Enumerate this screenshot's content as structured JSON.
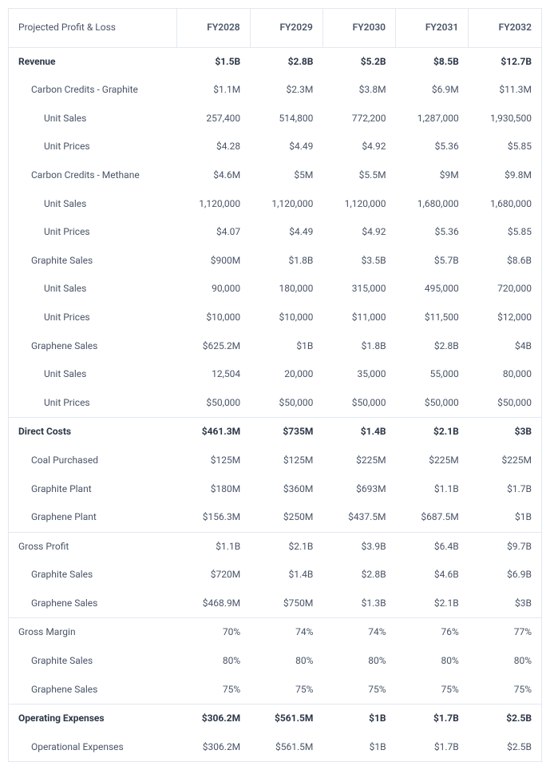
{
  "header": {
    "title": "Projected Profit & Loss",
    "cols": [
      "FY2028",
      "FY2029",
      "FY2030",
      "FY2031",
      "FY2032"
    ]
  },
  "rows": [
    {
      "type": "section",
      "topborder": true,
      "indent": 0,
      "label": "Revenue",
      "vals": [
        "$1.5B",
        "$2.8B",
        "$5.2B",
        "$8.5B",
        "$12.7B"
      ]
    },
    {
      "type": "plain",
      "indent": 1,
      "label": "Carbon Credits - Graphite",
      "vals": [
        "$1.1M",
        "$2.3M",
        "$3.8M",
        "$6.9M",
        "$11.3M"
      ]
    },
    {
      "type": "plain",
      "indent": 2,
      "label": "Unit Sales",
      "vals": [
        "257,400",
        "514,800",
        "772,200",
        "1,287,000",
        "1,930,500"
      ]
    },
    {
      "type": "plain",
      "indent": 2,
      "label": "Unit Prices",
      "vals": [
        "$4.28",
        "$4.49",
        "$4.92",
        "$5.36",
        "$5.85"
      ]
    },
    {
      "type": "plain",
      "indent": 1,
      "label": "Carbon Credits - Methane",
      "vals": [
        "$4.6M",
        "$5M",
        "$5.5M",
        "$9M",
        "$9.8M"
      ]
    },
    {
      "type": "plain",
      "indent": 2,
      "label": "Unit Sales",
      "vals": [
        "1,120,000",
        "1,120,000",
        "1,120,000",
        "1,680,000",
        "1,680,000"
      ]
    },
    {
      "type": "plain",
      "indent": 2,
      "label": "Unit Prices",
      "vals": [
        "$4.07",
        "$4.49",
        "$4.92",
        "$5.36",
        "$5.85"
      ]
    },
    {
      "type": "plain",
      "indent": 1,
      "label": "Graphite Sales",
      "vals": [
        "$900M",
        "$1.8B",
        "$3.5B",
        "$5.7B",
        "$8.6B"
      ]
    },
    {
      "type": "plain",
      "indent": 2,
      "label": "Unit Sales",
      "vals": [
        "90,000",
        "180,000",
        "315,000",
        "495,000",
        "720,000"
      ]
    },
    {
      "type": "plain",
      "indent": 2,
      "label": "Unit Prices",
      "vals": [
        "$10,000",
        "$10,000",
        "$11,000",
        "$11,500",
        "$12,000"
      ]
    },
    {
      "type": "plain",
      "indent": 1,
      "label": "Graphene Sales",
      "vals": [
        "$625.2M",
        "$1B",
        "$1.8B",
        "$2.8B",
        "$4B"
      ]
    },
    {
      "type": "plain",
      "indent": 2,
      "label": "Unit Sales",
      "vals": [
        "12,504",
        "20,000",
        "35,000",
        "55,000",
        "80,000"
      ]
    },
    {
      "type": "plain",
      "indent": 2,
      "label": "Unit Prices",
      "vals": [
        "$50,000",
        "$50,000",
        "$50,000",
        "$50,000",
        "$50,000"
      ]
    },
    {
      "type": "section",
      "topborder": true,
      "indent": 0,
      "label": "Direct Costs",
      "vals": [
        "$461.3M",
        "$735M",
        "$1.4B",
        "$2.1B",
        "$3B"
      ]
    },
    {
      "type": "plain",
      "indent": 1,
      "label": "Coal Purchased",
      "vals": [
        "$125M",
        "$125M",
        "$225M",
        "$225M",
        "$225M"
      ]
    },
    {
      "type": "plain",
      "indent": 1,
      "label": "Graphite Plant",
      "vals": [
        "$180M",
        "$360M",
        "$693M",
        "$1.1B",
        "$1.7B"
      ]
    },
    {
      "type": "plain",
      "indent": 1,
      "label": "Graphene Plant",
      "vals": [
        "$156.3M",
        "$250M",
        "$437.5M",
        "$687.5M",
        "$1B"
      ]
    },
    {
      "type": "plain",
      "topborder": true,
      "indent": 0,
      "label": "Gross Profit",
      "vals": [
        "$1.1B",
        "$2.1B",
        "$3.9B",
        "$6.4B",
        "$9.7B"
      ]
    },
    {
      "type": "plain",
      "indent": 1,
      "label": "Graphite Sales",
      "vals": [
        "$720M",
        "$1.4B",
        "$2.8B",
        "$4.6B",
        "$6.9B"
      ]
    },
    {
      "type": "plain",
      "indent": 1,
      "label": "Graphene Sales",
      "vals": [
        "$468.9M",
        "$750M",
        "$1.3B",
        "$2.1B",
        "$3B"
      ]
    },
    {
      "type": "plain",
      "topborder": true,
      "indent": 0,
      "label": "Gross Margin",
      "vals": [
        "70%",
        "74%",
        "74%",
        "76%",
        "77%"
      ]
    },
    {
      "type": "plain",
      "indent": 1,
      "label": "Graphite Sales",
      "vals": [
        "80%",
        "80%",
        "80%",
        "80%",
        "80%"
      ]
    },
    {
      "type": "plain",
      "indent": 1,
      "label": "Graphene Sales",
      "vals": [
        "75%",
        "75%",
        "75%",
        "75%",
        "75%"
      ]
    },
    {
      "type": "section",
      "topborder": true,
      "indent": 0,
      "label": "Operating Expenses",
      "vals": [
        "$306.2M",
        "$561.5M",
        "$1B",
        "$1.7B",
        "$2.5B"
      ]
    },
    {
      "type": "plain",
      "indent": 1,
      "label": "Operational Expenses",
      "vals": [
        "$306.2M",
        "$561.5M",
        "$1B",
        "$1.7B",
        "$2.5B"
      ]
    }
  ]
}
